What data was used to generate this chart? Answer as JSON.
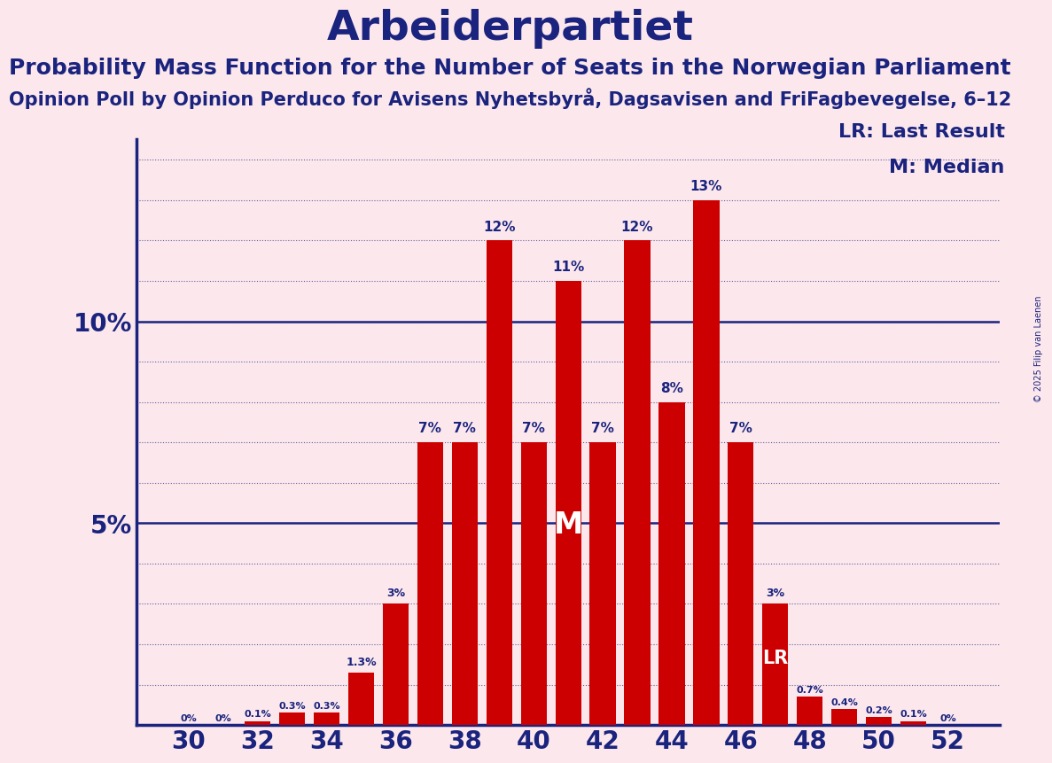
{
  "title": "Arbeiderpartiet",
  "subtitle1": "Probability Mass Function for the Number of Seats in the Norwegian Parliament",
  "subtitle2": "Opinion Poll by Opinion Perduco for Avisens Nyhetsbyrå, Dagsavisen and FriFagbevegelse, 6–12",
  "copyright": "© 2025 Filip van Laenen",
  "background_color": "#fce8ec",
  "bar_color": "#cc0000",
  "text_color": "#1a237e",
  "seats": [
    30,
    31,
    32,
    33,
    34,
    35,
    36,
    37,
    38,
    39,
    40,
    41,
    42,
    43,
    44,
    45,
    46,
    47,
    48,
    49,
    50,
    51,
    52
  ],
  "probs": [
    0.0,
    0.0,
    0.1,
    0.3,
    0.3,
    1.3,
    3.0,
    7.0,
    7.0,
    12.0,
    7.0,
    11.0,
    7.0,
    12.0,
    8.0,
    13.0,
    7.0,
    3.0,
    0.7,
    0.4,
    0.2,
    0.1,
    0.0
  ],
  "bar_labels": [
    "0%",
    "0%",
    "0.1%",
    "0.3%",
    "0.3%",
    "1.3%",
    "3%",
    "7%",
    "7%",
    "12%",
    "7%",
    "11%",
    "7%",
    "12%",
    "8%",
    "13%",
    "7%",
    "3%",
    "0.7%",
    "0.4%",
    "0.2%",
    "0.1%",
    "0%"
  ],
  "median_seat": 41,
  "last_result_seat": 47,
  "legend_lr": "LR: Last Result",
  "legend_m": "M: Median",
  "ylim": [
    0,
    14.5
  ],
  "xlim": [
    28.5,
    53.5
  ],
  "xticks": [
    30,
    32,
    34,
    36,
    38,
    40,
    42,
    44,
    46,
    48,
    50,
    52
  ],
  "ytick_major": [
    5,
    10
  ],
  "title_fontsize": 34,
  "subtitle1_fontsize": 18,
  "subtitle2_fontsize": 15,
  "axis_tick_fontsize": 20,
  "bar_label_fontsize_large": 11,
  "bar_label_fontsize_small": 9,
  "bar_label_fontsize_tiny": 8,
  "legend_fontsize": 16,
  "M_label_color": "#ffffff",
  "LR_label_color": "#ffffff",
  "bar_width": 0.75
}
